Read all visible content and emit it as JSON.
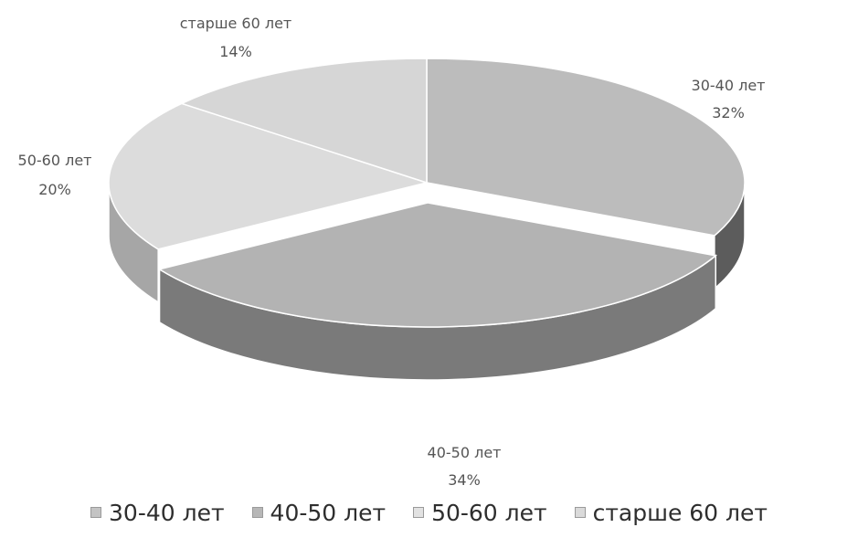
{
  "chart_data": {
    "type": "pie",
    "title": "",
    "categories": [
      "30-40 лет",
      "40-50 лет",
      "50-60 лет",
      "старше 60 лет"
    ],
    "values": [
      32,
      34,
      20,
      14
    ],
    "value_labels": [
      "32%",
      "34%",
      "20%",
      "14%"
    ],
    "colors": {
      "top": [
        "#bcbcbc",
        "#b3b3b3",
        "#dcdcdc",
        "#d6d6d6"
      ],
      "side": [
        "#5c5c5c",
        "#7a7a7a",
        "#a6a6a6",
        "#b9b9b9"
      ],
      "swatch": [
        "#c4c4c4",
        "#b7b7b7",
        "#e2e2e2",
        "#dadada"
      ]
    },
    "legend_position": "bottom",
    "three_d": true
  }
}
